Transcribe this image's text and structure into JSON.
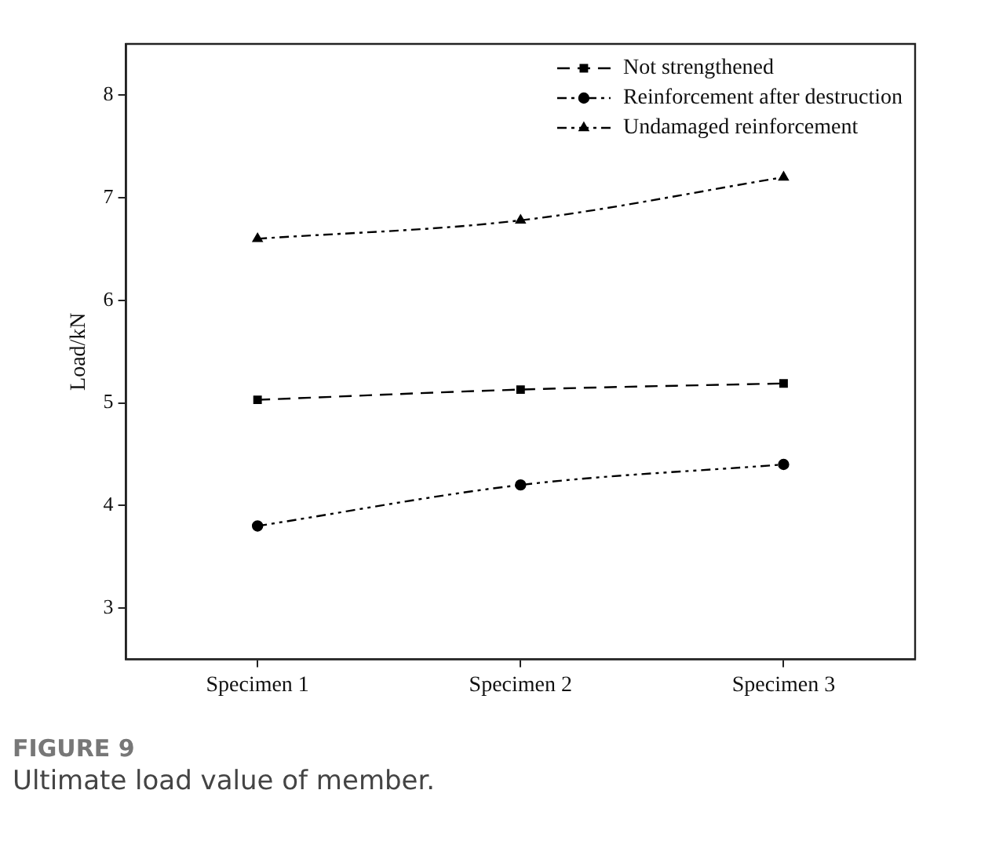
{
  "chart_data": {
    "type": "line",
    "ylabel": "Load/kN",
    "categories": [
      "Specimen 1",
      "Specimen 2",
      "Specimen 3"
    ],
    "series": [
      {
        "name": "Not strengthened",
        "color": "#000000",
        "values": [
          5.03,
          5.13,
          5.19
        ],
        "marker": "square",
        "line_style": "dashed"
      },
      {
        "name": "Reinforcement after destruction",
        "color": "#000000",
        "values": [
          3.8,
          4.2,
          4.4
        ],
        "marker": "circle",
        "line_style": "dotted"
      },
      {
        "name": "Undamaged reinforcement",
        "color": "#000000",
        "values": [
          6.6,
          6.78,
          7.2
        ],
        "marker": "triangle",
        "line_style": "dashdot"
      }
    ],
    "ylim": [
      2.5,
      8.5
    ],
    "yticks": [
      3,
      4,
      5,
      6,
      7,
      8
    ],
    "grid": false,
    "legend": "top right",
    "annotations": [
      "FIGURE 9",
      "Ultimate load value of member."
    ]
  }
}
